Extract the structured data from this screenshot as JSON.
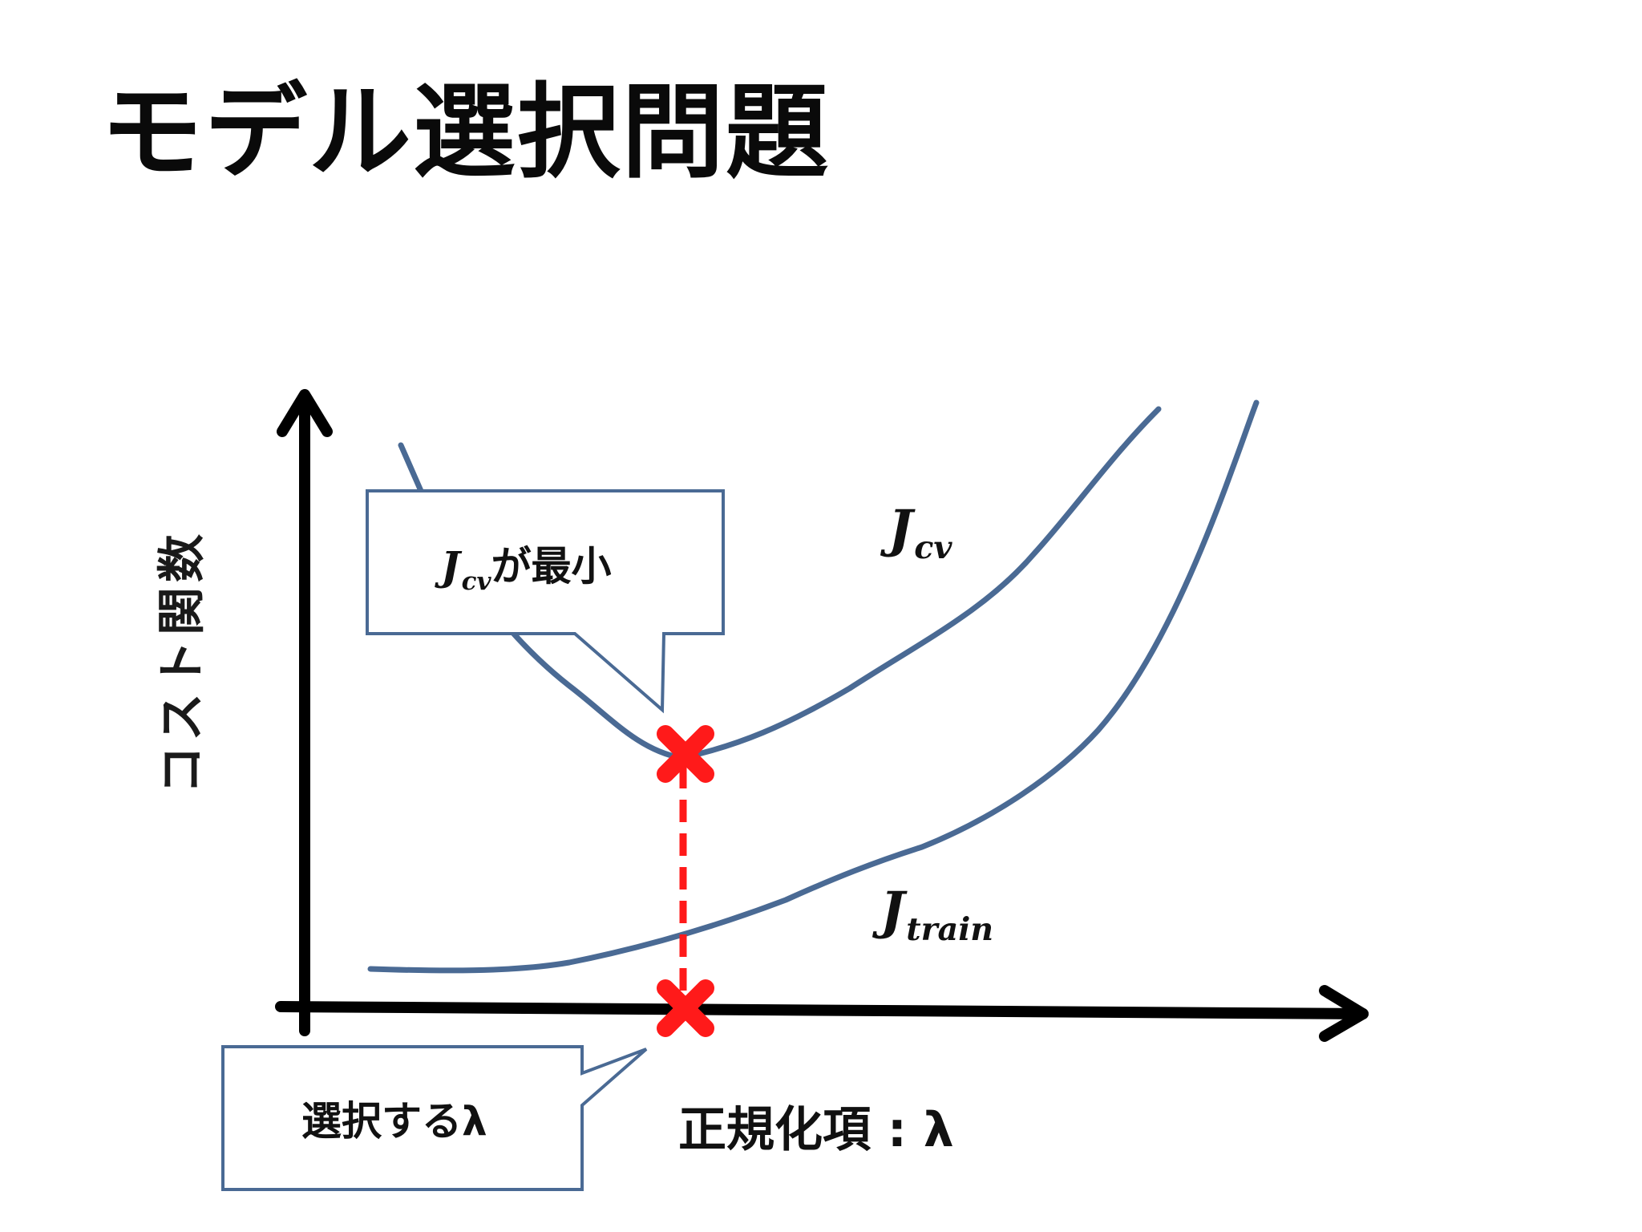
{
  "slide": {
    "title": "モデル選択問題"
  },
  "axes": {
    "ylabel": "コスト関数",
    "xlabel": "正規化項 : λ"
  },
  "curves": {
    "cv": {
      "main": "J",
      "sub": "cv"
    },
    "train": {
      "main": "J",
      "sub": "train"
    }
  },
  "callouts": {
    "min": {
      "main": "J",
      "sub": "cv",
      "suffix": "が最小"
    },
    "lambda": {
      "text": "選択するλ"
    }
  },
  "colors": {
    "curve": "#4a6a94",
    "marker": "#ff1a1a",
    "axis": "#000000",
    "callout_border": "#4a6a94"
  }
}
